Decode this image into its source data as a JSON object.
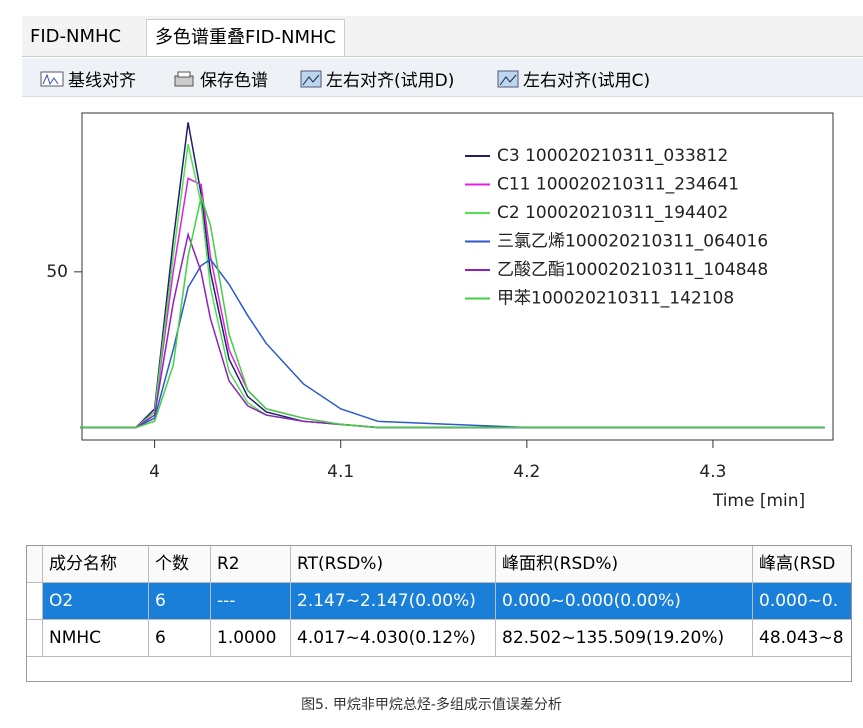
{
  "tabs": [
    "FID-NMHC",
    "多色谱重叠FID-NMHC"
  ],
  "toolbar": [
    "基线对齐",
    "保存色谱",
    "左右对齐(试用D)",
    "左右对齐(试用C)"
  ],
  "chart_data": {
    "type": "line",
    "x_label": "Time [min]",
    "x": [
      3.96,
      3.99,
      4.0,
      4.01,
      4.018,
      4.025,
      4.03,
      4.04,
      4.05,
      4.06,
      4.08,
      4.1,
      4.12,
      4.2,
      4.3,
      4.36
    ],
    "series": [
      {
        "name": "C3 100020210311_033812",
        "color": "#1f1f6e",
        "values": [
          0,
          0,
          6,
          60,
          98,
          75,
          50,
          22,
          10,
          5,
          2,
          1,
          0,
          0,
          0,
          0
        ]
      },
      {
        "name": "C11 100020210311_234641",
        "color": "#e020e0",
        "values": [
          0,
          0,
          5,
          50,
          80,
          78,
          55,
          25,
          12,
          6,
          3,
          1,
          0,
          0,
          0,
          0
        ]
      },
      {
        "name": "C2 100020210311_194402",
        "color": "#50e050",
        "values": [
          0,
          0,
          5,
          55,
          91,
          72,
          45,
          18,
          8,
          4,
          2,
          1,
          0,
          0,
          0,
          0
        ]
      },
      {
        "name": "三氯乙烯100020210311_064016",
        "color": "#2a5acc",
        "values": [
          0,
          0,
          3,
          25,
          45,
          52,
          54,
          46,
          36,
          27,
          14,
          6,
          2,
          0,
          0,
          0
        ]
      },
      {
        "name": "乙酸乙酯100020210311_104848",
        "color": "#9020c0",
        "values": [
          0,
          0,
          4,
          40,
          62,
          50,
          35,
          15,
          7,
          4,
          2,
          1,
          0,
          0,
          0,
          0
        ]
      },
      {
        "name": "甲苯100020210311_142108",
        "color": "#40d040",
        "values": [
          0,
          0,
          2,
          20,
          55,
          74,
          65,
          30,
          12,
          6,
          3,
          1,
          0,
          0,
          0,
          0
        ]
      }
    ],
    "xlim": [
      3.961,
      4.3645
    ],
    "xticks": [
      4,
      4.1,
      4.2,
      4.3
    ],
    "ylim": [
      -4,
      101
    ],
    "yticks": [
      50
    ],
    "legend": "upper right"
  },
  "table": {
    "headers": [
      "成分名称",
      "个数",
      "R2",
      "RT(RSD%)",
      "峰面积(RSD%)",
      "峰高(RSD"
    ],
    "rows": [
      [
        "O2",
        "6",
        "---",
        "2.147~2.147(0.00%)",
        "0.000~0.000(0.00%)",
        "0.000~0."
      ],
      [
        "NMHC",
        "6",
        "1.0000",
        "4.017~4.030(0.12%)",
        "82.502~135.509(19.20%)",
        "48.043~8"
      ]
    ]
  },
  "caption": "图5. 甲烷非甲烷总烃-多组成示值误差分析"
}
